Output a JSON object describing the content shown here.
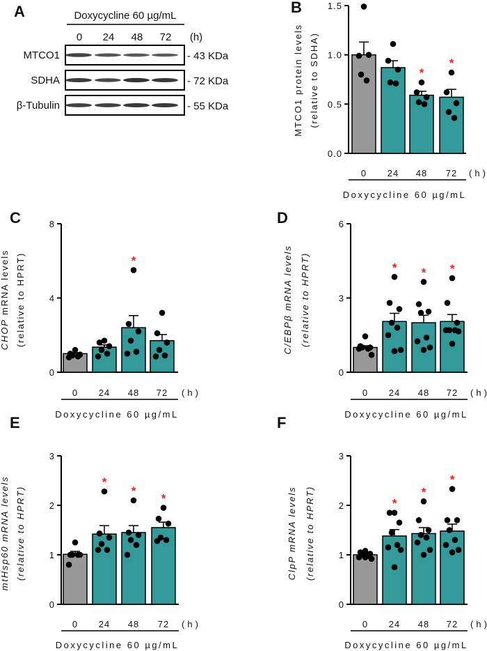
{
  "colors": {
    "control": "#999999",
    "treated": "#339a99",
    "star": "#ff1a1a",
    "dot": "#000000"
  },
  "panel_a": {
    "letter": "A",
    "treatment": "Doxycycline 60 µg/mL",
    "times": [
      "0",
      "24",
      "48",
      "72"
    ],
    "unit": "(h)",
    "rows": [
      {
        "protein": "MTCO1",
        "size": "- 43 KDa",
        "band_intensity": [
          0.8,
          0.6,
          0.55,
          0.5
        ]
      },
      {
        "protein": "SDHA",
        "size": "- 72 KDa",
        "band_intensity": [
          0.9,
          0.75,
          1.0,
          0.95
        ]
      },
      {
        "protein": "β-Tubulin",
        "size": "- 55 KDa",
        "band_intensity": [
          0.85,
          0.85,
          0.95,
          0.95
        ]
      }
    ]
  },
  "chart_data": [
    {
      "id": "B",
      "letter": "B",
      "type": "bar",
      "categories": [
        "0",
        "24",
        "48",
        "72"
      ],
      "unit": "(h)",
      "xlabel": "Doxycycline 60 µg/mL",
      "ylabel_lines": [
        [
          {
            "text": "MTCO1 protein levels",
            "italic": false
          }
        ],
        [
          {
            "text": "(relative to SDHA)",
            "italic": false
          }
        ]
      ],
      "ylim": [
        0,
        1.5
      ],
      "yticks": [
        "0.0",
        "0.5",
        "1.0",
        "1.5"
      ],
      "ytick_values": [
        0,
        0.5,
        1.0,
        1.5
      ],
      "means": [
        1.0,
        0.87,
        0.59,
        0.57
      ],
      "sem": [
        0.13,
        0.07,
        0.04,
        0.08
      ],
      "points": [
        [
          1.49,
          0.99,
          1.0,
          0.8,
          0.74
        ],
        [
          1.11,
          0.94,
          0.85,
          0.72,
          0.71
        ],
        [
          0.72,
          0.62,
          0.57,
          0.52,
          0.5
        ],
        [
          0.82,
          0.62,
          0.51,
          0.42,
          0.36
        ]
      ],
      "significant": [
        false,
        false,
        true,
        true
      ],
      "star": "*"
    },
    {
      "id": "C",
      "letter": "C",
      "type": "bar",
      "categories": [
        "0",
        "24",
        "48",
        "72"
      ],
      "unit": "(h)",
      "xlabel": "Doxycycline 60 µg/mL",
      "ylabel_lines": [
        [
          {
            "text": "CHOP",
            "italic": true
          },
          {
            "text": " mRNA levels",
            "italic": false
          }
        ],
        [
          {
            "text": "(relative to HPRT)",
            "italic": false
          }
        ]
      ],
      "ylim": [
        0,
        8
      ],
      "yticks": [
        "0",
        "4",
        "8"
      ],
      "ytick_values": [
        0,
        4,
        8
      ],
      "means": [
        1.0,
        1.35,
        2.4,
        1.7
      ],
      "sem": [
        0.06,
        0.12,
        0.65,
        0.33
      ],
      "points": [
        [
          1.2,
          1.0,
          0.95,
          0.9,
          0.85,
          0.8
        ],
        [
          1.7,
          1.6,
          1.4,
          1.2,
          1.0,
          0.85
        ],
        [
          5.5,
          2.6,
          2.2,
          1.7,
          1.1,
          1.0
        ],
        [
          3.2,
          2.1,
          1.6,
          1.2,
          0.9,
          0.85
        ]
      ],
      "significant": [
        false,
        false,
        true,
        false
      ],
      "star": "*"
    },
    {
      "id": "D",
      "letter": "D",
      "type": "bar",
      "categories": [
        "0",
        "24",
        "48",
        "72"
      ],
      "unit": "(h)",
      "xlabel": "Doxycycline 60 µg/mL",
      "ylabel_lines": [
        [
          {
            "text": "C/EBPβ mRNA levels",
            "italic": true
          }
        ],
        [
          {
            "text": "(relative to HPRT)",
            "italic": true
          }
        ]
      ],
      "ylim": [
        0,
        6
      ],
      "yticks": [
        "0",
        "3",
        "6"
      ],
      "ytick_values": [
        0,
        3,
        6
      ],
      "means": [
        1.0,
        2.05,
        2.0,
        2.05
      ],
      "sem": [
        0.07,
        0.33,
        0.3,
        0.28
      ],
      "points": [
        [
          1.45,
          1.05,
          1.0,
          1.0,
          0.95,
          0.95,
          0.7
        ],
        [
          3.85,
          2.8,
          2.55,
          2.0,
          1.8,
          1.5,
          0.9,
          0.85
        ],
        [
          3.65,
          2.75,
          2.45,
          2.4,
          1.4,
          1.25,
          1.0,
          0.9
        ],
        [
          3.8,
          2.8,
          2.0,
          1.7,
          1.7,
          1.7,
          1.65,
          1.15
        ]
      ],
      "significant": [
        false,
        true,
        true,
        true
      ],
      "star": "*"
    },
    {
      "id": "E",
      "letter": "E",
      "type": "bar",
      "categories": [
        "0",
        "24",
        "48",
        "72"
      ],
      "unit": "(h)",
      "xlabel": "Doxycycline 60 µg/mL",
      "ylabel_lines": [
        [
          {
            "text": "mtHsp60 mRNA levels",
            "italic": true
          }
        ],
        [
          {
            "text": "(relative to HPRT)",
            "italic": true
          }
        ]
      ],
      "ylim": [
        0,
        3
      ],
      "yticks": [
        "0",
        "1",
        "2",
        "3"
      ],
      "ytick_values": [
        0,
        1,
        2,
        3
      ],
      "means": [
        1.01,
        1.42,
        1.45,
        1.55
      ],
      "sem": [
        0.06,
        0.17,
        0.14,
        0.11
      ],
      "points": [
        [
          1.25,
          1.0,
          1.0,
          1.0,
          1.0,
          0.8
        ],
        [
          2.28,
          1.43,
          1.35,
          1.22,
          1.1,
          1.1
        ],
        [
          2.1,
          1.45,
          1.4,
          1.3,
          1.2,
          1.0
        ],
        [
          1.95,
          1.73,
          1.63,
          1.35,
          1.3,
          1.28
        ]
      ],
      "significant": [
        false,
        true,
        true,
        true
      ],
      "star": "*"
    },
    {
      "id": "F",
      "letter": "F",
      "type": "bar",
      "categories": [
        "0",
        "24",
        "48",
        "72"
      ],
      "unit": "(h)",
      "xlabel": "Doxycycline 60 µg/mL",
      "ylabel_lines": [
        [
          {
            "text": "ClpP mRNA levels",
            "italic": true
          }
        ],
        [
          {
            "text": "(relative to HPRT)",
            "italic": true
          }
        ]
      ],
      "ylim": [
        0,
        3
      ],
      "yticks": [
        "0",
        "1",
        "2",
        "3"
      ],
      "ytick_values": [
        0,
        1,
        2,
        3
      ],
      "means": [
        1.0,
        1.38,
        1.43,
        1.48
      ],
      "sem": [
        0.02,
        0.13,
        0.12,
        0.14
      ],
      "points": [
        [
          1.08,
          1.05,
          1.02,
          1.0,
          0.98,
          0.95,
          0.92,
          0.95
        ],
        [
          1.85,
          1.85,
          1.65,
          1.45,
          1.2,
          1.15,
          1.1,
          0.75
        ],
        [
          2.08,
          1.7,
          1.5,
          1.4,
          1.35,
          1.25,
          1.1,
          1.0
        ],
        [
          2.33,
          1.7,
          1.7,
          1.5,
          1.3,
          1.2,
          1.1,
          1.05
        ]
      ],
      "significant": [
        false,
        true,
        true,
        true
      ],
      "star": "*"
    }
  ]
}
